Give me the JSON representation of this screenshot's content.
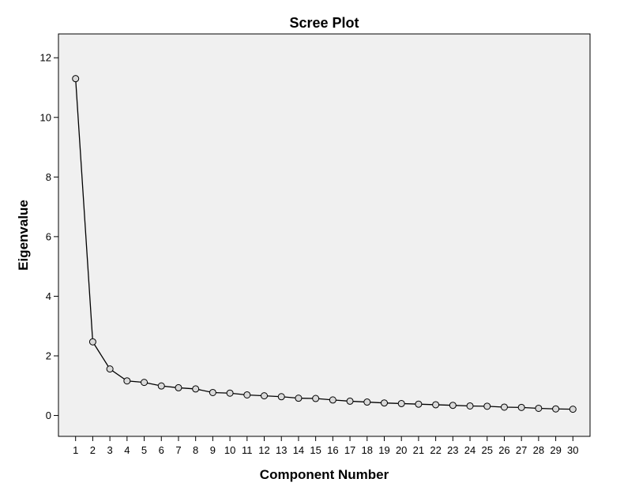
{
  "chart_data": {
    "type": "line",
    "title": "Scree Plot",
    "xlabel": "Component Number",
    "ylabel": "Eigenvalue",
    "x": [
      1,
      2,
      3,
      4,
      5,
      6,
      7,
      8,
      9,
      10,
      11,
      12,
      13,
      14,
      15,
      16,
      17,
      18,
      19,
      20,
      21,
      22,
      23,
      24,
      25,
      26,
      27,
      28,
      29,
      30
    ],
    "y": [
      11.3,
      2.47,
      1.56,
      1.16,
      1.11,
      0.99,
      0.93,
      0.89,
      0.77,
      0.75,
      0.69,
      0.66,
      0.63,
      0.58,
      0.57,
      0.52,
      0.48,
      0.45,
      0.42,
      0.4,
      0.38,
      0.36,
      0.34,
      0.32,
      0.31,
      0.28,
      0.27,
      0.24,
      0.22,
      0.21
    ],
    "xlim": [
      0,
      31
    ],
    "ylim": [
      -0.7,
      12.8
    ],
    "yticks": [
      0,
      2,
      4,
      6,
      8,
      10,
      12
    ],
    "xticks": [
      1,
      2,
      3,
      4,
      5,
      6,
      7,
      8,
      9,
      10,
      11,
      12,
      13,
      14,
      15,
      16,
      17,
      18,
      19,
      20,
      21,
      22,
      23,
      24,
      25,
      26,
      27,
      28,
      29,
      30
    ],
    "grid": false,
    "marker": "circle",
    "colors": {
      "plot_background": "#f0f0f0",
      "line": "#000000",
      "marker_fill": "#d9d9d9",
      "frame": "#000000"
    }
  }
}
